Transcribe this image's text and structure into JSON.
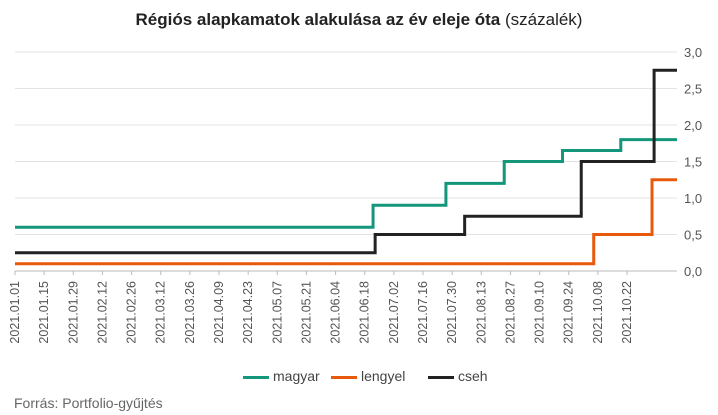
{
  "title": {
    "bold": "Régiós alapkamatok alakulása az év eleje óta",
    "normal": "(százalék)"
  },
  "source": "Forrás: Portfolio-gyűjtés",
  "chart_data": {
    "type": "line",
    "step": true,
    "x_range": [
      "2021.01.01",
      "2021.11.15"
    ],
    "x_tick_labels": [
      "2021.01.01",
      "2021.01.15",
      "2021.01.29",
      "2021.02.12",
      "2021.02.26",
      "2021.03.12",
      "2021.03.26",
      "2021.04.09",
      "2021.04.23",
      "2021.05.07",
      "2021.05.21",
      "2021.06.04",
      "2021.06.18",
      "2021.07.02",
      "2021.07.16",
      "2021.07.30",
      "2021.08.13",
      "2021.08.27",
      "2021.09.10",
      "2021.09.24",
      "2021.10.08",
      "2021.10.22"
    ],
    "y_axis": {
      "position": "right",
      "min": 0.0,
      "max": 3.0,
      "ticks": [
        "0,0",
        "0,5",
        "1,0",
        "1,5",
        "2,0",
        "2,5",
        "3,0"
      ],
      "gridlines": true
    },
    "legend_position": "bottom",
    "series": [
      {
        "name": "magyar",
        "color": "#13967a",
        "x": [
          "2021.01.01",
          "2021.06.22",
          "2021.07.27",
          "2021.08.24",
          "2021.09.21",
          "2021.10.19",
          "2021.11.15"
        ],
        "y": [
          0.6,
          0.9,
          1.2,
          1.5,
          1.65,
          1.8,
          1.8
        ]
      },
      {
        "name": "lengyel",
        "color": "#e8590c",
        "x": [
          "2021.01.01",
          "2021.10.06",
          "2021.11.03",
          "2021.11.15"
        ],
        "y": [
          0.1,
          0.5,
          1.25,
          1.25
        ]
      },
      {
        "name": "cseh",
        "color": "#222222",
        "x": [
          "2021.01.01",
          "2021.06.23",
          "2021.08.05",
          "2021.09.30",
          "2021.11.04",
          "2021.11.15"
        ],
        "y": [
          0.25,
          0.5,
          0.75,
          1.5,
          2.75,
          2.75
        ]
      }
    ]
  }
}
